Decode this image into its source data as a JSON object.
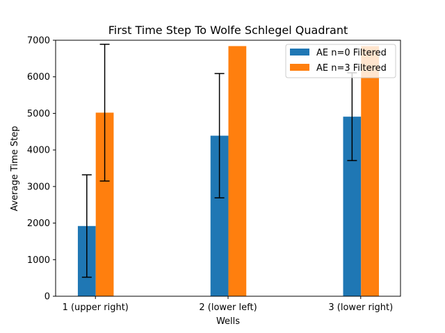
{
  "chart_data": {
    "type": "bar",
    "title": "First Time Step To Wolfe Schlegel Quadrant",
    "xlabel": "Wells",
    "ylabel": "Average Time Step",
    "categories": [
      "1 (upper right)",
      "2 (lower left)",
      "3 (lower right)"
    ],
    "ylim": [
      0,
      7000
    ],
    "yticks": [
      0,
      1000,
      2000,
      3000,
      4000,
      5000,
      6000,
      7000
    ],
    "grid": false,
    "legend_position": "top-right",
    "series": [
      {
        "name": "AE n=0 Filtered",
        "color": "#1f77b4",
        "values": [
          1920,
          4390,
          4910
        ],
        "errors": [
          1400,
          1700,
          1200
        ]
      },
      {
        "name": "AE n=3 Filtered",
        "color": "#ff7f0e",
        "values": [
          5020,
          6840,
          6840
        ],
        "errors": [
          1870,
          null,
          null
        ]
      }
    ]
  }
}
